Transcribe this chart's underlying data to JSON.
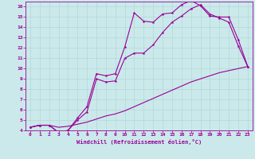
{
  "bg_color": "#cbe9ea",
  "line_color": "#990099",
  "grid_color": "#b0d8d8",
  "xlabel": "Windchill (Refroidissement éolien,°C)",
  "xlim": [
    -0.5,
    23.5
  ],
  "ylim": [
    4,
    16.5
  ],
  "xticks": [
    0,
    1,
    2,
    3,
    4,
    5,
    6,
    7,
    8,
    9,
    10,
    11,
    12,
    13,
    14,
    15,
    16,
    17,
    18,
    19,
    20,
    21,
    22,
    23
  ],
  "yticks": [
    4,
    5,
    6,
    7,
    8,
    9,
    10,
    11,
    12,
    13,
    14,
    15,
    16
  ],
  "line1_x": [
    0,
    1,
    2,
    3,
    4,
    5,
    6,
    7,
    8,
    9,
    10,
    11,
    12,
    13,
    14,
    15,
    16,
    17,
    18,
    19,
    20,
    21,
    22,
    23
  ],
  "line1_y": [
    4.3,
    4.5,
    4.5,
    3.8,
    4.0,
    5.2,
    6.3,
    9.5,
    9.3,
    9.5,
    12.1,
    15.4,
    14.6,
    14.5,
    15.3,
    15.4,
    16.2,
    16.6,
    16.1,
    15.1,
    15.0,
    15.0,
    12.8,
    10.2
  ],
  "line2_x": [
    0,
    1,
    2,
    3,
    4,
    5,
    6,
    7,
    8,
    9,
    10,
    11,
    12,
    13,
    14,
    15,
    16,
    17,
    18,
    19,
    20,
    21,
    22,
    23
  ],
  "line2_y": [
    4.3,
    4.5,
    4.5,
    3.8,
    4.0,
    5.0,
    5.8,
    9.0,
    8.7,
    8.8,
    11.0,
    11.5,
    11.5,
    12.3,
    13.5,
    14.5,
    15.1,
    15.8,
    16.2,
    15.3,
    14.9,
    14.5,
    12.2,
    10.2
  ],
  "line3_x": [
    0,
    1,
    2,
    3,
    4,
    5,
    6,
    7,
    8,
    9,
    10,
    11,
    12,
    13,
    14,
    15,
    16,
    17,
    18,
    19,
    20,
    21,
    22,
    23
  ],
  "line3_y": [
    4.3,
    4.5,
    4.5,
    4.3,
    4.4,
    4.6,
    4.8,
    5.1,
    5.4,
    5.6,
    5.9,
    6.3,
    6.7,
    7.1,
    7.5,
    7.9,
    8.3,
    8.7,
    9.0,
    9.3,
    9.6,
    9.8,
    10.0,
    10.2
  ]
}
